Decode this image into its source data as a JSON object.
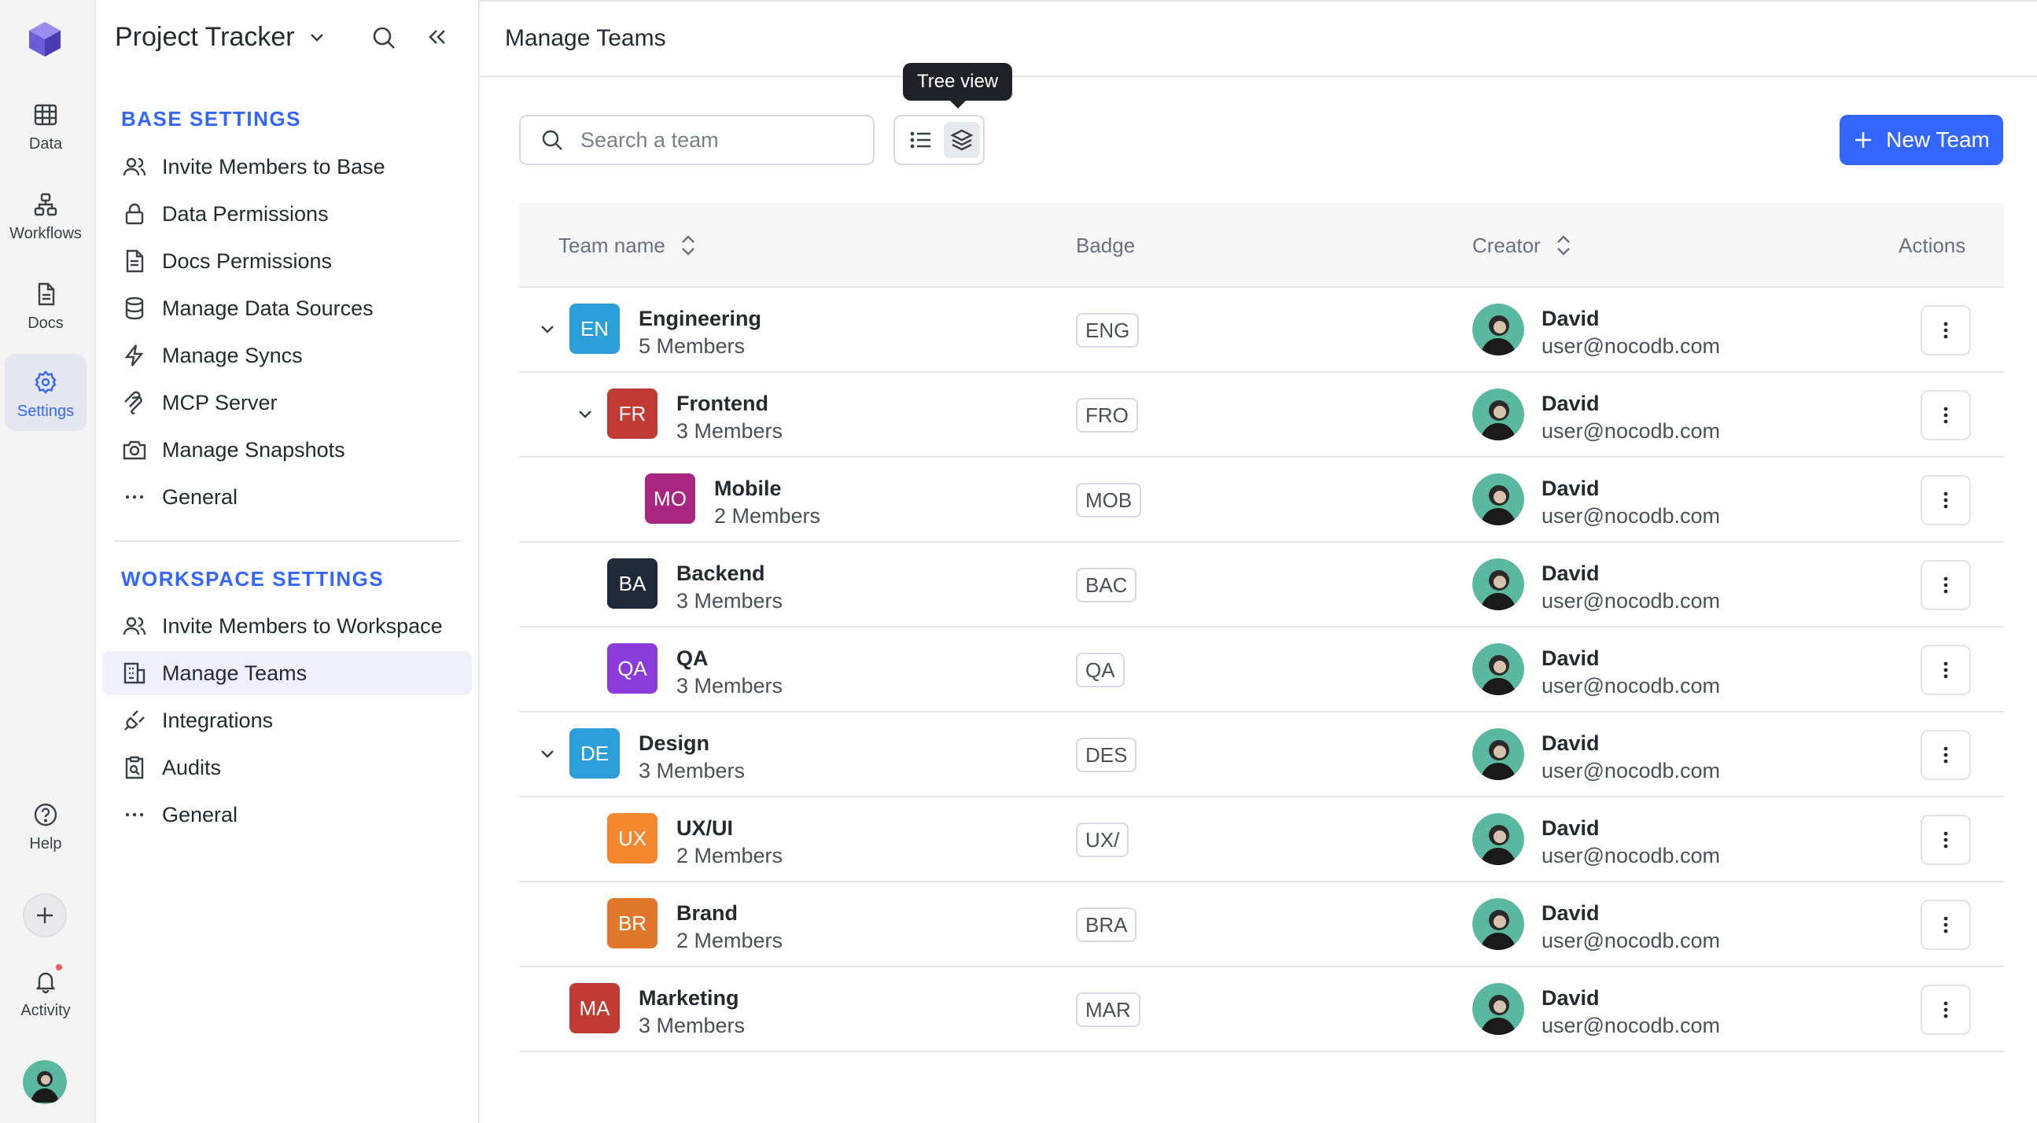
{
  "rail": {
    "items": [
      {
        "label": "Data",
        "icon": "table-grid-icon"
      },
      {
        "label": "Workflows",
        "icon": "workflow-icon"
      },
      {
        "label": "Docs",
        "icon": "document-icon"
      },
      {
        "label": "Settings",
        "icon": "gear-icon",
        "active": true
      }
    ],
    "help_label": "Help",
    "activity_label": "Activity"
  },
  "sidebar": {
    "project_title": "Project Tracker",
    "base_section": {
      "heading": "BASE SETTINGS",
      "items": [
        {
          "label": "Invite Members to Base",
          "icon": "users-icon"
        },
        {
          "label": "Data Permissions",
          "icon": "lock-icon"
        },
        {
          "label": "Docs Permissions",
          "icon": "document-icon"
        },
        {
          "label": "Manage Data Sources",
          "icon": "database-icon"
        },
        {
          "label": "Manage Syncs",
          "icon": "lightning-icon"
        },
        {
          "label": "MCP Server",
          "icon": "mcp-icon"
        },
        {
          "label": "Manage Snapshots",
          "icon": "camera-icon"
        },
        {
          "label": "General",
          "icon": "ellipsis-icon"
        }
      ]
    },
    "workspace_section": {
      "heading": "WORKSPACE SETTINGS",
      "items": [
        {
          "label": "Invite Members to Workspace",
          "icon": "users-icon"
        },
        {
          "label": "Manage Teams",
          "icon": "building-icon",
          "active": true
        },
        {
          "label": "Integrations",
          "icon": "plug-icon"
        },
        {
          "label": "Audits",
          "icon": "clipboard-search-icon"
        },
        {
          "label": "General",
          "icon": "ellipsis-icon"
        }
      ]
    }
  },
  "main": {
    "title": "Manage Teams",
    "search_placeholder": "Search a team",
    "tooltip": "Tree view",
    "new_team_label": "New Team",
    "columns": {
      "team_name": "Team name",
      "badge": "Badge",
      "creator": "Creator",
      "actions": "Actions"
    },
    "teams": [
      {
        "initials": "EN",
        "name": "Engineering",
        "members": "5 Members",
        "badge": "ENG",
        "color": "#2d9fd8",
        "level": 0,
        "expanded": true,
        "creator": "David",
        "email": "user@nocodb.com"
      },
      {
        "initials": "FR",
        "name": "Frontend",
        "members": "3 Members",
        "badge": "FRO",
        "color": "#c23a34",
        "level": 1,
        "expanded": true,
        "creator": "David",
        "email": "user@nocodb.com"
      },
      {
        "initials": "MO",
        "name": "Mobile",
        "members": "2 Members",
        "badge": "MOB",
        "color": "#a82680",
        "level": 2,
        "expanded": false,
        "creator": "David",
        "email": "user@nocodb.com"
      },
      {
        "initials": "BA",
        "name": "Backend",
        "members": "3 Members",
        "badge": "BAC",
        "color": "#1f2937",
        "level": 1,
        "expanded": false,
        "creator": "David",
        "email": "user@nocodb.com"
      },
      {
        "initials": "QA",
        "name": "QA",
        "members": "3 Members",
        "badge": "QA",
        "color": "#8a3bd9",
        "level": 1,
        "expanded": false,
        "creator": "David",
        "email": "user@nocodb.com"
      },
      {
        "initials": "DE",
        "name": "Design",
        "members": "3 Members",
        "badge": "DES",
        "color": "#2d9fd8",
        "level": 0,
        "expanded": true,
        "creator": "David",
        "email": "user@nocodb.com"
      },
      {
        "initials": "UX",
        "name": "UX/UI",
        "members": "2 Members",
        "badge": "UX/",
        "color": "#f5882f",
        "level": 1,
        "expanded": false,
        "creator": "David",
        "email": "user@nocodb.com"
      },
      {
        "initials": "BR",
        "name": "Brand",
        "members": "2 Members",
        "badge": "BRA",
        "color": "#e0772a",
        "level": 1,
        "expanded": false,
        "creator": "David",
        "email": "user@nocodb.com"
      },
      {
        "initials": "MA",
        "name": "Marketing",
        "members": "3 Members",
        "badge": "MAR",
        "color": "#c23a34",
        "level": 0,
        "expanded": false,
        "creator": "David",
        "email": "user@nocodb.com"
      }
    ]
  }
}
